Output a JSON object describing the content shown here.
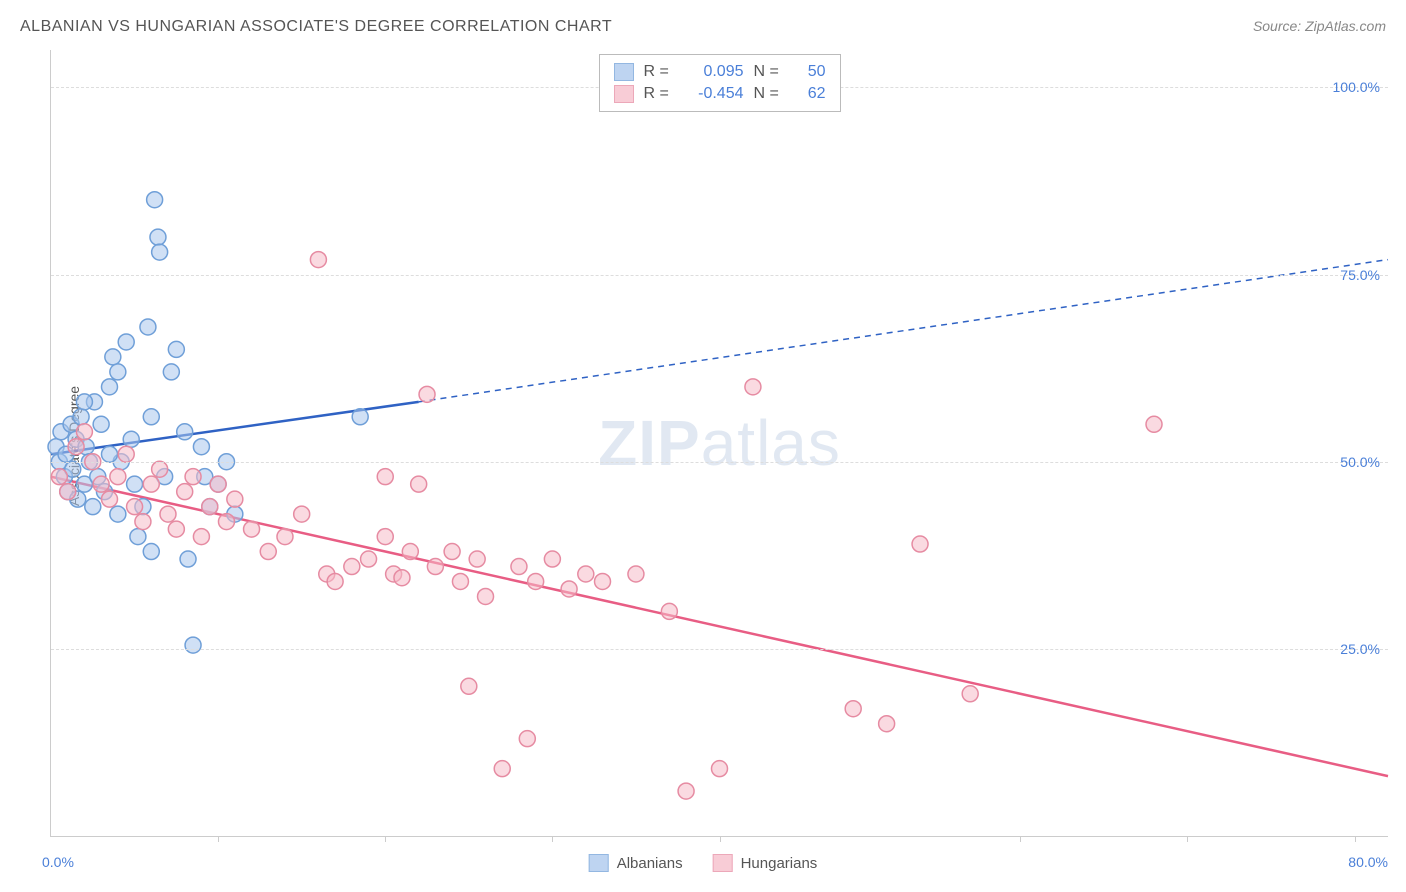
{
  "title": "ALBANIAN VS HUNGARIAN ASSOCIATE'S DEGREE CORRELATION CHART",
  "source": "Source: ZipAtlas.com",
  "ylabel": "Associate's Degree",
  "watermark_bold": "ZIP",
  "watermark_light": "atlas",
  "chart": {
    "type": "scatter",
    "xlim": [
      0,
      80
    ],
    "ylim": [
      0,
      105
    ],
    "x_axis_label_left": "0.0%",
    "x_axis_label_right": "80.0%",
    "x_tick_positions": [
      10,
      20,
      30,
      40,
      58,
      68,
      78
    ],
    "gridlines_y": [
      25,
      50,
      75,
      100
    ],
    "y_tick_labels": {
      "25": "25.0%",
      "50": "50.0%",
      "75": "75.0%",
      "100": "100.0%"
    },
    "background_color": "#ffffff",
    "grid_color": "#dddddd",
    "axis_color": "#cccccc",
    "tick_label_color": "#4a7fd8",
    "marker_radius": 8,
    "marker_stroke_width": 1.5,
    "series": [
      {
        "name": "Albanians",
        "fill": "#a9c6ed",
        "stroke": "#6f9fd8",
        "fill_opacity": 0.55,
        "R": "0.095",
        "N": "50",
        "trend": {
          "color": "#2f62c4",
          "width": 2.5,
          "solid_from": [
            0,
            51
          ],
          "solid_to": [
            22,
            58
          ],
          "dashed_to": [
            80,
            77
          ]
        },
        "points": [
          [
            0.3,
            52
          ],
          [
            0.5,
            50
          ],
          [
            0.6,
            54
          ],
          [
            0.8,
            48
          ],
          [
            0.9,
            51
          ],
          [
            1.0,
            46
          ],
          [
            1.2,
            55
          ],
          [
            1.3,
            49
          ],
          [
            1.5,
            53
          ],
          [
            1.6,
            45
          ],
          [
            1.8,
            56
          ],
          [
            2.0,
            47
          ],
          [
            2.1,
            52
          ],
          [
            2.3,
            50
          ],
          [
            2.5,
            44
          ],
          [
            2.6,
            58
          ],
          [
            2.8,
            48
          ],
          [
            3.0,
            55
          ],
          [
            3.2,
            46
          ],
          [
            3.5,
            60
          ],
          [
            3.7,
            64
          ],
          [
            4.0,
            62
          ],
          [
            4.2,
            50
          ],
          [
            4.5,
            66
          ],
          [
            4.8,
            53
          ],
          [
            5.0,
            47
          ],
          [
            5.2,
            40
          ],
          [
            5.5,
            44
          ],
          [
            5.8,
            68
          ],
          [
            6.0,
            56
          ],
          [
            6.2,
            85
          ],
          [
            6.4,
            80
          ],
          [
            6.5,
            78
          ],
          [
            6.8,
            48
          ],
          [
            7.2,
            62
          ],
          [
            7.5,
            65
          ],
          [
            8.0,
            54
          ],
          [
            8.2,
            37
          ],
          [
            8.5,
            25.5
          ],
          [
            9.0,
            52
          ],
          [
            9.2,
            48
          ],
          [
            9.5,
            44
          ],
          [
            10.0,
            47
          ],
          [
            10.5,
            50
          ],
          [
            11.0,
            43
          ],
          [
            6.0,
            38
          ],
          [
            4.0,
            43
          ],
          [
            3.5,
            51
          ],
          [
            18.5,
            56
          ],
          [
            2.0,
            58
          ]
        ]
      },
      {
        "name": "Hungarians",
        "fill": "#f6bcc9",
        "stroke": "#e68ba2",
        "fill_opacity": 0.55,
        "R": "-0.454",
        "N": "62",
        "trend": {
          "color": "#e85d84",
          "width": 2.5,
          "solid_from": [
            0,
            48
          ],
          "solid_to": [
            80,
            8
          ],
          "dashed_to": null
        },
        "points": [
          [
            0.5,
            48
          ],
          [
            1.0,
            46
          ],
          [
            1.5,
            52
          ],
          [
            2.0,
            54
          ],
          [
            2.5,
            50
          ],
          [
            3.0,
            47
          ],
          [
            3.5,
            45
          ],
          [
            4.0,
            48
          ],
          [
            4.5,
            51
          ],
          [
            5.0,
            44
          ],
          [
            5.5,
            42
          ],
          [
            6.0,
            47
          ],
          [
            6.5,
            49
          ],
          [
            7.0,
            43
          ],
          [
            7.5,
            41
          ],
          [
            8.0,
            46
          ],
          [
            8.5,
            48
          ],
          [
            9.0,
            40
          ],
          [
            9.5,
            44
          ],
          [
            10.0,
            47
          ],
          [
            10.5,
            42
          ],
          [
            11.0,
            45
          ],
          [
            12.0,
            41
          ],
          [
            13.0,
            38
          ],
          [
            14.0,
            40
          ],
          [
            15.0,
            43
          ],
          [
            16.0,
            77
          ],
          [
            16.5,
            35
          ],
          [
            17.0,
            34
          ],
          [
            18.0,
            36
          ],
          [
            19.0,
            37
          ],
          [
            20.0,
            40
          ],
          [
            20.5,
            35
          ],
          [
            21.0,
            34.5
          ],
          [
            22.0,
            47
          ],
          [
            22.5,
            59
          ],
          [
            23.0,
            36
          ],
          [
            24.0,
            38
          ],
          [
            25.0,
            20
          ],
          [
            25.5,
            37
          ],
          [
            26.0,
            32
          ],
          [
            27.0,
            9
          ],
          [
            28.0,
            36
          ],
          [
            28.5,
            13
          ],
          [
            29.0,
            34
          ],
          [
            30.0,
            37
          ],
          [
            31.0,
            33
          ],
          [
            32.0,
            35
          ],
          [
            33.0,
            34
          ],
          [
            35.0,
            35
          ],
          [
            37.0,
            30
          ],
          [
            38.0,
            6
          ],
          [
            40.0,
            9
          ],
          [
            42.0,
            60
          ],
          [
            48.0,
            17
          ],
          [
            50.0,
            15
          ],
          [
            52.0,
            39
          ],
          [
            55.0,
            19
          ],
          [
            66.0,
            55
          ],
          [
            20.0,
            48
          ],
          [
            21.5,
            38
          ],
          [
            24.5,
            34
          ]
        ]
      }
    ]
  },
  "legend_top": {
    "r_label": "R =",
    "n_label": "N ="
  },
  "legend_bottom": {
    "items": [
      "Albanians",
      "Hungarians"
    ]
  }
}
